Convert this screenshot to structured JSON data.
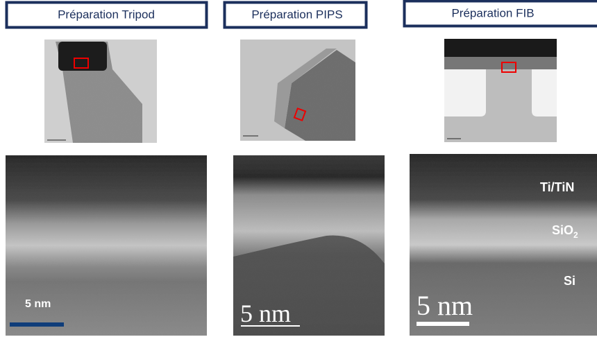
{
  "panels": [
    {
      "title": "Préparation Tripod",
      "scale_label": "5 nm"
    },
    {
      "title": "Préparation PIPS",
      "scale_label": "5 nm"
    },
    {
      "title": "Préparation FIB",
      "scale_label": "5 nm"
    }
  ],
  "layer_labels": {
    "top": "Ti/TiN",
    "middle": {
      "base": "SiO",
      "sub": "2"
    },
    "bottom": "Si"
  }
}
